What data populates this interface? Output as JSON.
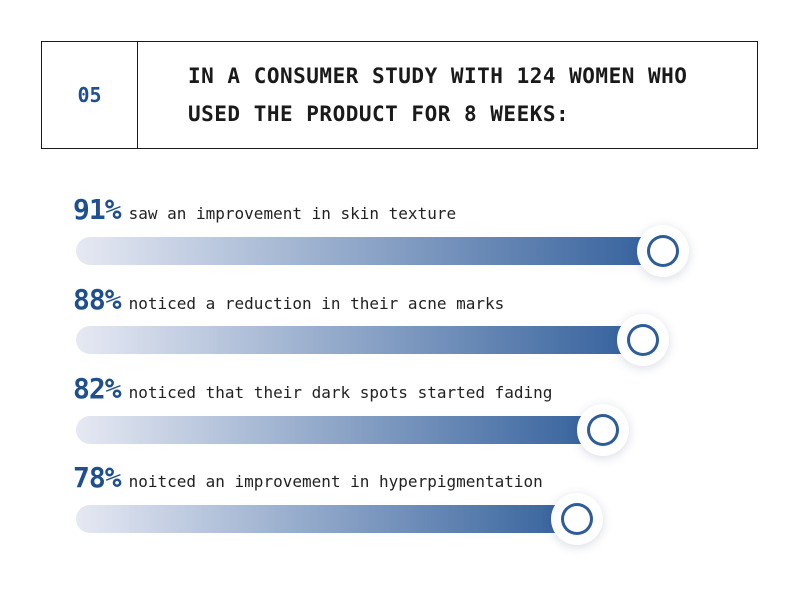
{
  "header": {
    "number": "05",
    "line1": "IN A CONSUMER STUDY WITH 124 WOMEN WHO",
    "line2": "USED THE PRODUCT FOR 8 WEEKS:"
  },
  "colors": {
    "accent": "#1f4f8f",
    "bar_start": "#e6e9f3",
    "bar_end": "#2e5c99"
  },
  "stats": [
    {
      "percent": "91%",
      "value": 91,
      "text": "saw an improvement in skin texture"
    },
    {
      "percent": "88%",
      "value": 88,
      "text": "noticed a reduction in their acne marks"
    },
    {
      "percent": "82%",
      "value": 82,
      "text": "noticed that their dark spots started fading"
    },
    {
      "percent": "78%",
      "value": 78,
      "text": "noitced an improvement in hyperpigmentation"
    }
  ]
}
